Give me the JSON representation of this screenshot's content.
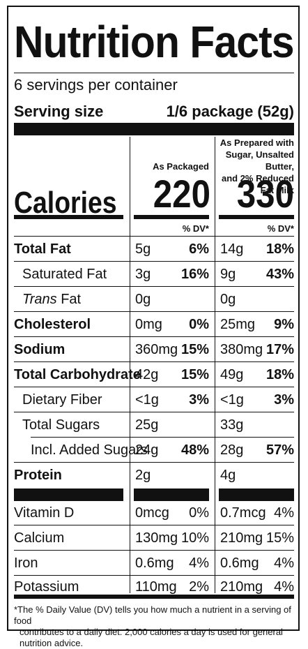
{
  "title": "Nutrition Facts",
  "servings_per_container": "6 servings per container",
  "serving_size_label": "Serving size",
  "serving_size_value": "1/6 package (52g)",
  "columns": {
    "packaged_header": "As Packaged",
    "prepared_header_line1": "As Prepared with",
    "prepared_header_line2": "Sugar, Unsalted Butter,",
    "prepared_header_line3": "and 2% Reduced Fat Milk"
  },
  "calories_label": "Calories",
  "calories_packaged": "220",
  "calories_prepared": "330",
  "dv_header": "% DV*",
  "nutrients": [
    {
      "name": "Total Fat",
      "amt1": "5g",
      "dv1": "6%",
      "amt2": "14g",
      "dv2": "18%"
    },
    {
      "name": "Saturated Fat",
      "amt1": "3g",
      "dv1": "16%",
      "amt2": "9g",
      "dv2": "43%"
    },
    {
      "name_italic": "Trans",
      "name_rest": " Fat",
      "amt1": "0g",
      "dv1": "",
      "amt2": "0g",
      "dv2": ""
    },
    {
      "name": "Cholesterol",
      "amt1": "0mg",
      "dv1": "0%",
      "amt2": "25mg",
      "dv2": "9%"
    },
    {
      "name": "Sodium",
      "amt1": "360mg",
      "dv1": "15%",
      "amt2": "380mg",
      "dv2": "17%"
    },
    {
      "name": "Total Carbohydrate",
      "amt1": "42g",
      "dv1": "15%",
      "amt2": "49g",
      "dv2": "18%"
    },
    {
      "name": "Dietary Fiber",
      "amt1": "<1g",
      "dv1": "3%",
      "amt2": "<1g",
      "dv2": "3%"
    },
    {
      "name": "Total Sugars",
      "amt1": "25g",
      "dv1": "",
      "amt2": "33g",
      "dv2": ""
    },
    {
      "name": "Incl. Added Sugars",
      "amt1": "24g",
      "dv1": "48%",
      "amt2": "28g",
      "dv2": "57%"
    },
    {
      "name": "Protein",
      "amt1": "2g",
      "dv1": "",
      "amt2": "4g",
      "dv2": ""
    }
  ],
  "vitamins": [
    {
      "name": "Vitamin D",
      "amt1": "0mcg",
      "dv1": "0%",
      "amt2": "0.7mcg",
      "dv2": "4%"
    },
    {
      "name": "Calcium",
      "amt1": "130mg",
      "dv1": "10%",
      "amt2": "210mg",
      "dv2": "15%"
    },
    {
      "name": "Iron",
      "amt1": "0.6mg",
      "dv1": "4%",
      "amt2": "0.6mg",
      "dv2": "4%"
    },
    {
      "name": "Potassium",
      "amt1": "110mg",
      "dv1": "2%",
      "amt2": "210mg",
      "dv2": "4%"
    }
  ],
  "footnote_line1": "*The % Daily Value (DV) tells you how much a nutrient in a serving of food",
  "footnote_line2": "contributes to a daily diet. 2,000 calories a day is used for general nutrition advice."
}
